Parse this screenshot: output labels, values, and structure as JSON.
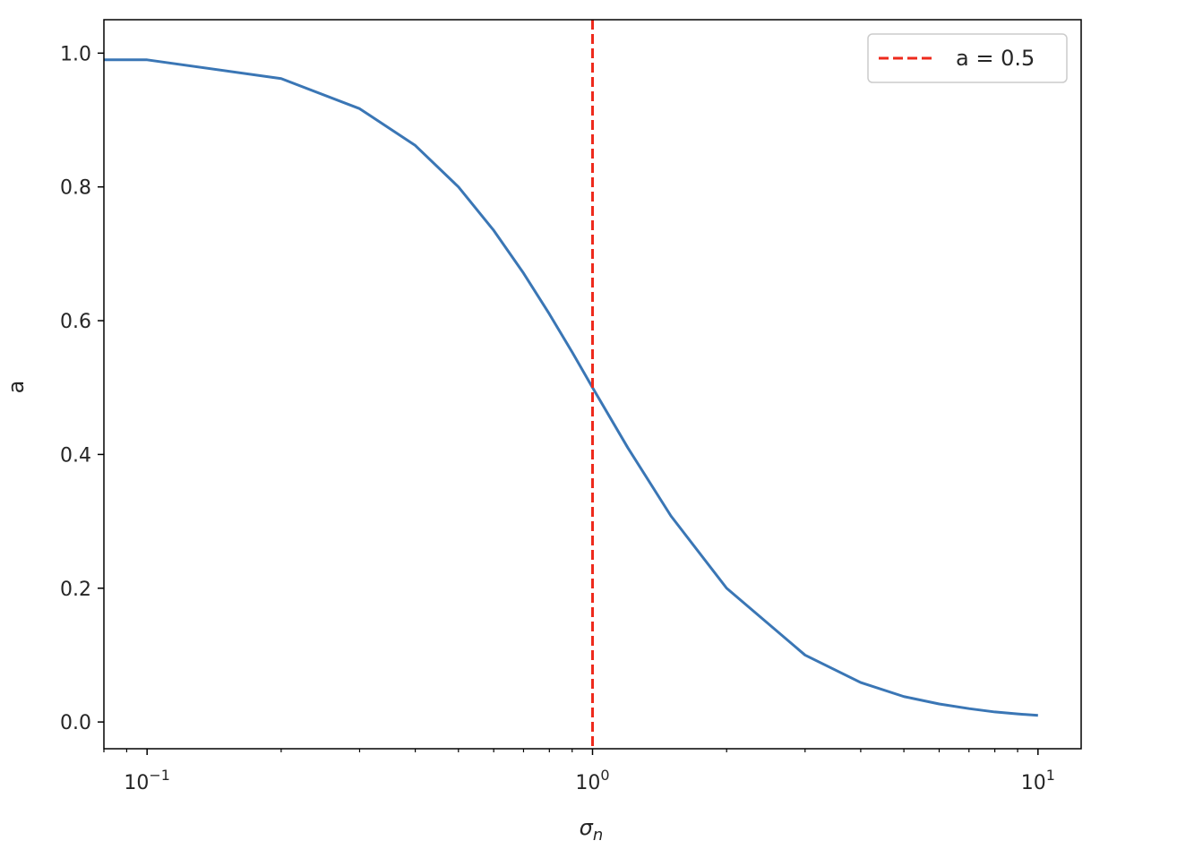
{
  "chart_data": {
    "type": "line",
    "xscale": "log",
    "xlim": [
      0.08,
      12.5
    ],
    "ylim": [
      -0.04,
      1.05
    ],
    "xlabel": "σ",
    "xlabel_sub": "n",
    "ylabel": "a",
    "yticks": [
      {
        "value": 0.0,
        "label": "0.0"
      },
      {
        "value": 0.2,
        "label": "0.2"
      },
      {
        "value": 0.4,
        "label": "0.4"
      },
      {
        "value": 0.6,
        "label": "0.6"
      },
      {
        "value": 0.8,
        "label": "0.8"
      },
      {
        "value": 1.0,
        "label": "1.0"
      }
    ],
    "xticks": [
      {
        "value": 0.1,
        "base": "10",
        "exp": "−1"
      },
      {
        "value": 1,
        "base": "10",
        "exp": "0"
      },
      {
        "value": 10,
        "base": "10",
        "exp": "1"
      }
    ],
    "series": [
      {
        "color": "#3a76b5",
        "x": [
          0.08,
          0.1,
          0.2,
          0.3,
          0.4,
          0.5,
          0.6,
          0.7,
          0.8,
          0.9,
          1.0,
          1.2,
          1.5,
          2,
          3,
          4,
          5,
          6,
          7,
          8,
          9,
          10
        ],
        "y": [
          0.99,
          0.99,
          0.962,
          0.917,
          0.862,
          0.8,
          0.735,
          0.671,
          0.61,
          0.553,
          0.5,
          0.41,
          0.308,
          0.2,
          0.1,
          0.059,
          0.038,
          0.027,
          0.02,
          0.015,
          0.012,
          0.0099
        ]
      }
    ],
    "reference_lines": [
      {
        "orientation": "vertical",
        "x": 1.0,
        "color": "#ee2a1c",
        "style": "dashed",
        "name": "a = 0.5"
      }
    ],
    "legend": {
      "position": "top-right",
      "entries": [
        "a = 0.5"
      ]
    },
    "grid": false
  }
}
